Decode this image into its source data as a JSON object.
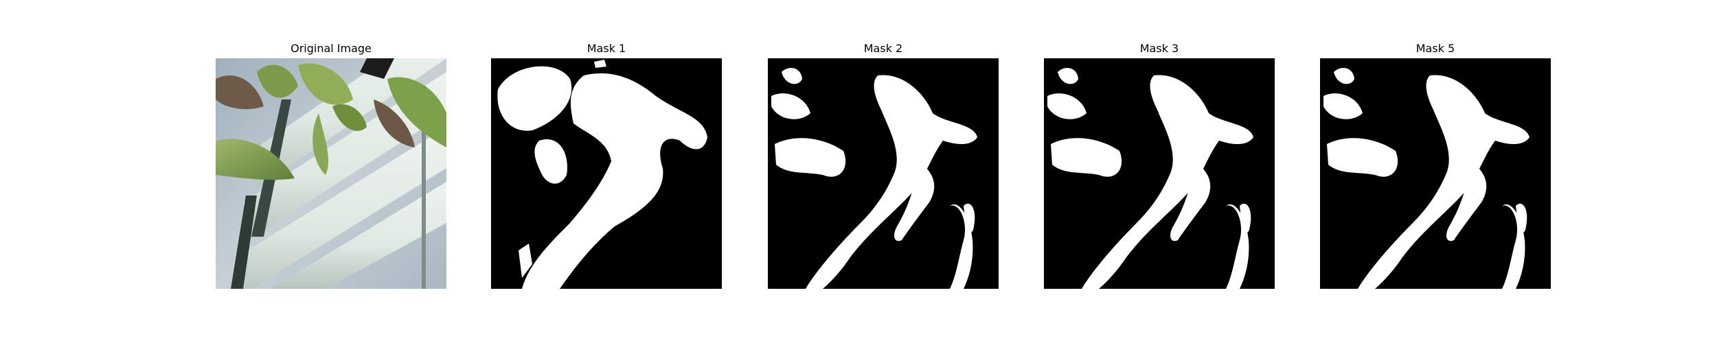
{
  "panels": [
    {
      "title": "Original Image",
      "kind": "photo"
    },
    {
      "title": "Mask 1",
      "kind": "mask"
    },
    {
      "title": "Mask 2",
      "kind": "mask"
    },
    {
      "title": "Mask 3",
      "kind": "mask"
    },
    {
      "title": "Mask 5",
      "kind": "mask"
    }
  ],
  "colors": {
    "background": "#ffffff",
    "mask_fg": "#ffffff",
    "mask_bg": "#000000"
  }
}
